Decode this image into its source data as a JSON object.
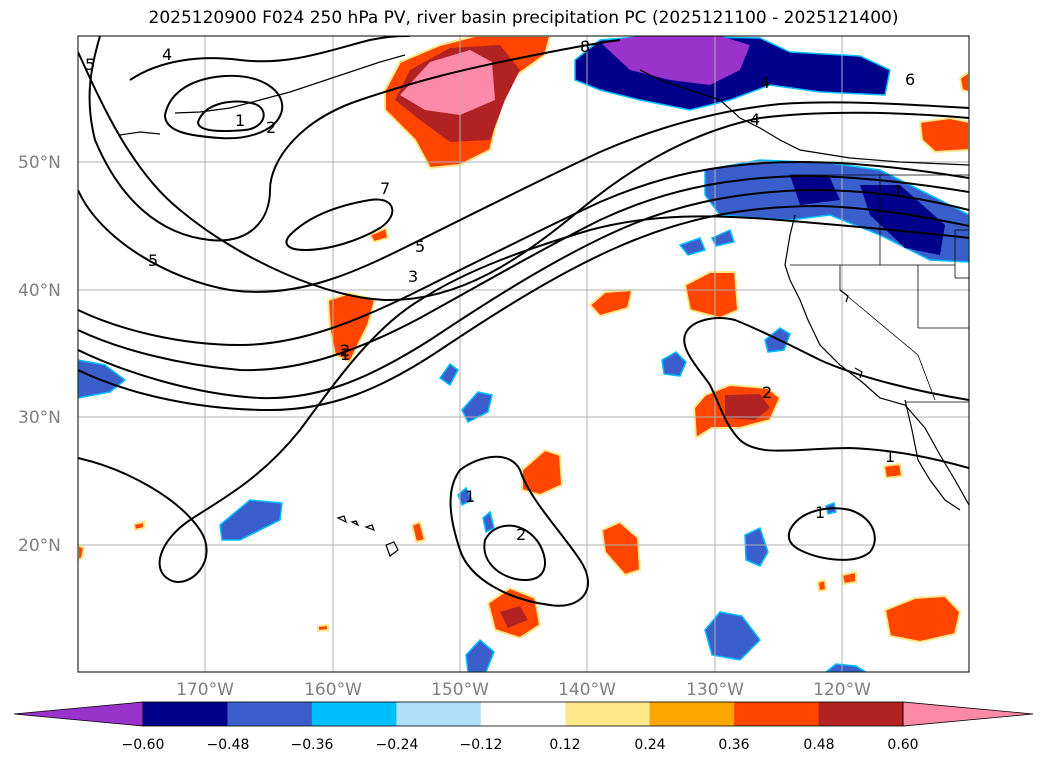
{
  "title": "2025120900 F024 250 hPa PV, river basin precipitation PC (2025121100 - 2025121400)",
  "lat_labels": [
    "50°N",
    "40°N",
    "30°N",
    "20°N"
  ],
  "lon_labels": [
    "170°W",
    "160°W",
    "150°W",
    "140°W",
    "130°W",
    "120°W"
  ],
  "colorbar": {
    "tick_labels": [
      "−0.60",
      "−0.48",
      "−0.36",
      "−0.24",
      "−0.12",
      "0.12",
      "0.24",
      "0.36",
      "0.48",
      "0.60"
    ],
    "colors": [
      "#9933cc",
      "#00008b",
      "#3a5fcd",
      "#00bfff",
      "#afe0fa",
      "#ffffff",
      "#ffe88c",
      "#ffa500",
      "#ff4500",
      "#b22222",
      "#ff89a8"
    ],
    "under_color": "#9933cc",
    "over_color": "#ff89a8"
  },
  "contour_labels": [
    "5",
    "4",
    "1",
    "2",
    "8",
    "4",
    "6",
    "4",
    "1",
    "7",
    "5",
    "3",
    "5",
    "1",
    "2",
    "1",
    "2",
    "1",
    "1",
    "2"
  ]
}
